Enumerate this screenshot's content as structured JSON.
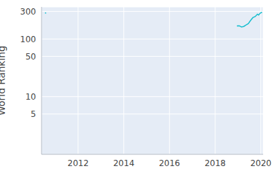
{
  "chart_data": {
    "type": "line",
    "y_label": "World Ranking",
    "x": [
      2010.55,
      2010.6,
      2014.5,
      2018.95,
      2019.05,
      2019.15,
      2019.25,
      2019.35,
      2019.45,
      2019.55,
      2019.65,
      2019.75,
      2019.85,
      2019.9,
      2019.95,
      2020.0,
      2020.05
    ],
    "values": [
      285,
      280,
      null,
      168,
      170,
      162,
      165,
      175,
      185,
      210,
      235,
      245,
      270,
      260,
      275,
      285,
      290
    ],
    "color": "#17becf",
    "log": "y",
    "xlim": [
      2010.4,
      2020.1
    ],
    "xticks": [
      2012,
      2014,
      2016,
      2018,
      2020
    ],
    "ylim": [
      1,
      360
    ],
    "yticks": [
      5,
      10,
      50,
      100,
      300
    ],
    "grid": true
  }
}
